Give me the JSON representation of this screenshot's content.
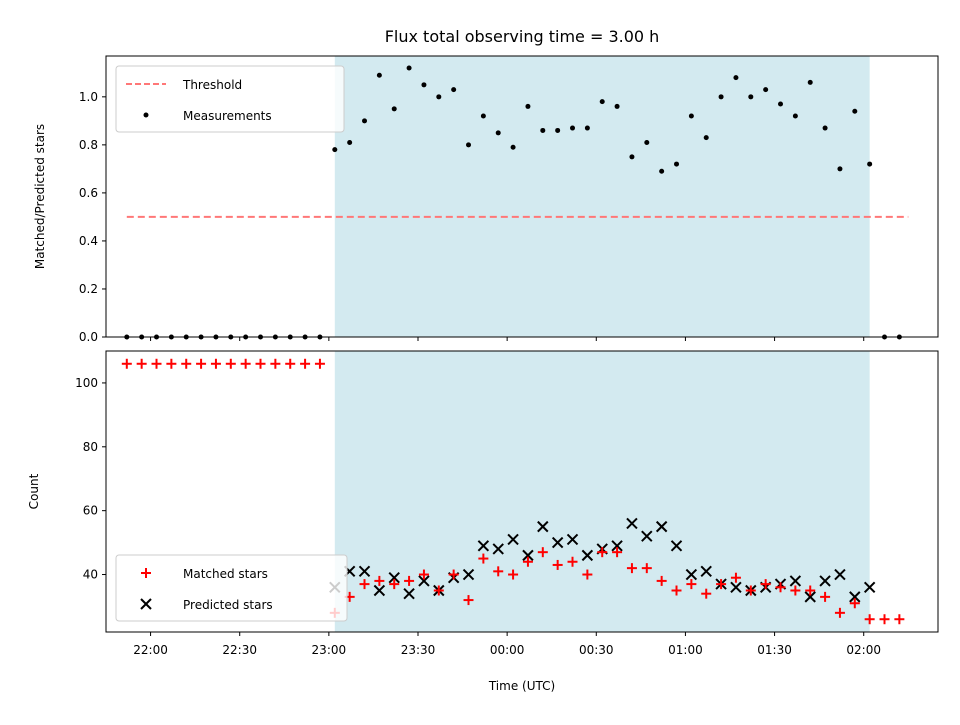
{
  "chart_data": [
    {
      "type": "scatter",
      "title": "Flux total observing time = 3.00 h",
      "xlabel": "",
      "ylabel": "Matched/Predicted stars",
      "xlim": [
        "21:45",
        "02:25"
      ],
      "ylim": [
        0,
        1.17
      ],
      "yticks": [
        "0.0",
        "0.2",
        "0.4",
        "0.6",
        "0.8",
        "1.0"
      ],
      "observing_window": [
        "23:02",
        "02:02"
      ],
      "legend_position": "top-left",
      "threshold": {
        "name": "Threshold",
        "value": 0.5,
        "x_range": [
          "21:52",
          "02:15"
        ],
        "color": "#ff7777"
      },
      "series": [
        {
          "name": "Measurements",
          "marker": "dot",
          "color": "#000000",
          "x": [
            "21:52",
            "21:57",
            "22:02",
            "22:07",
            "22:12",
            "22:17",
            "22:22",
            "22:27",
            "22:32",
            "22:37",
            "22:42",
            "22:47",
            "22:52",
            "22:57",
            "23:02",
            "23:07",
            "23:12",
            "23:17",
            "23:22",
            "23:27",
            "23:32",
            "23:37",
            "23:42",
            "23:47",
            "23:52",
            "23:57",
            "00:02",
            "00:07",
            "00:12",
            "00:17",
            "00:22",
            "00:27",
            "00:32",
            "00:37",
            "00:42",
            "00:47",
            "00:52",
            "00:57",
            "01:02",
            "01:07",
            "01:12",
            "01:17",
            "01:22",
            "01:27",
            "01:32",
            "01:37",
            "01:42",
            "01:47",
            "01:52",
            "01:57",
            "02:02",
            "02:07",
            "02:12"
          ],
          "values": [
            0,
            0,
            0,
            0,
            0,
            0,
            0,
            0,
            0,
            0,
            0,
            0,
            0,
            0,
            0.78,
            0.81,
            0.9,
            1.09,
            0.95,
            1.12,
            1.05,
            1.0,
            1.03,
            0.8,
            0.92,
            0.85,
            0.79,
            0.96,
            0.86,
            0.86,
            0.87,
            0.87,
            0.98,
            0.96,
            0.75,
            0.81,
            0.69,
            0.72,
            0.92,
            0.83,
            1.0,
            1.08,
            1.0,
            1.03,
            0.97,
            0.92,
            1.06,
            0.87,
            0.7,
            0.94,
            0.72,
            0,
            0
          ]
        }
      ]
    },
    {
      "type": "scatter",
      "title": "",
      "xlabel": "Time (UTC)",
      "ylabel": "Count",
      "xlim": [
        "21:45",
        "02:25"
      ],
      "ylim": [
        22,
        110
      ],
      "yticks": [
        "40",
        "60",
        "80",
        "100"
      ],
      "xticks": [
        "22:00",
        "22:30",
        "23:00",
        "23:30",
        "00:00",
        "00:30",
        "01:00",
        "01:30",
        "02:00"
      ],
      "observing_window": [
        "23:02",
        "02:02"
      ],
      "legend_position": "bottom-left",
      "series": [
        {
          "name": "Matched stars",
          "marker": "plus",
          "color": "#ff0000",
          "x": [
            "21:52",
            "21:57",
            "22:02",
            "22:07",
            "22:12",
            "22:17",
            "22:22",
            "22:27",
            "22:32",
            "22:37",
            "22:42",
            "22:47",
            "22:52",
            "22:57",
            "23:02",
            "23:07",
            "23:12",
            "23:17",
            "23:22",
            "23:27",
            "23:32",
            "23:37",
            "23:42",
            "23:47",
            "23:52",
            "23:57",
            "00:02",
            "00:07",
            "00:12",
            "00:17",
            "00:22",
            "00:27",
            "00:32",
            "00:37",
            "00:42",
            "00:47",
            "00:52",
            "00:57",
            "01:02",
            "01:07",
            "01:12",
            "01:17",
            "01:22",
            "01:27",
            "01:32",
            "01:37",
            "01:42",
            "01:47",
            "01:52",
            "01:57",
            "02:02",
            "02:07",
            "02:12"
          ],
          "values": [
            106,
            106,
            106,
            106,
            106,
            106,
            106,
            106,
            106,
            106,
            106,
            106,
            106,
            106,
            28,
            33,
            37,
            38,
            37,
            38,
            40,
            35,
            40,
            32,
            45,
            41,
            40,
            44,
            47,
            43,
            44,
            40,
            47,
            47,
            42,
            42,
            38,
            35,
            37,
            34,
            37,
            39,
            35,
            37,
            36,
            35,
            35,
            33,
            28,
            31,
            26,
            26,
            26
          ]
        },
        {
          "name": "Predicted stars",
          "marker": "x",
          "color": "#000000",
          "x": [
            "23:02",
            "23:07",
            "23:12",
            "23:17",
            "23:22",
            "23:27",
            "23:32",
            "23:37",
            "23:42",
            "23:47",
            "23:52",
            "23:57",
            "00:02",
            "00:07",
            "00:12",
            "00:17",
            "00:22",
            "00:27",
            "00:32",
            "00:37",
            "00:42",
            "00:47",
            "00:52",
            "00:57",
            "01:02",
            "01:07",
            "01:12",
            "01:17",
            "01:22",
            "01:27",
            "01:32",
            "01:37",
            "01:42",
            "01:47",
            "01:52",
            "01:57",
            "02:02"
          ],
          "values": [
            36,
            41,
            41,
            35,
            39,
            34,
            38,
            35,
            39,
            40,
            49,
            48,
            51,
            46,
            55,
            50,
            51,
            46,
            48,
            49,
            56,
            52,
            55,
            49,
            40,
            41,
            37,
            36,
            35,
            36,
            37,
            38,
            33,
            38,
            40,
            33,
            36
          ]
        }
      ]
    }
  ],
  "colors": {
    "observing_window_fill": "#d3eaf0",
    "threshold": "#ff7777",
    "matched": "#ff0000",
    "predicted": "#000000",
    "measurement": "#000000"
  }
}
